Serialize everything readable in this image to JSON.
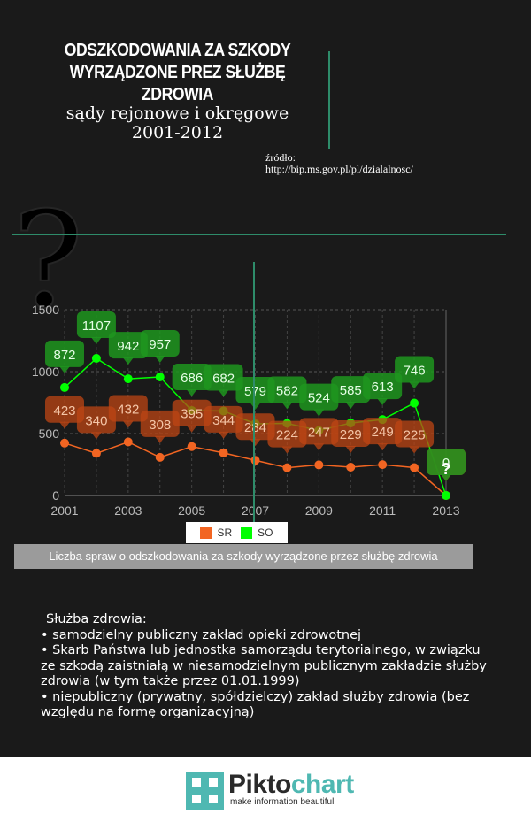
{
  "header": {
    "title_line1": "ODSZKODOWANIA ZA SZKODY",
    "title_line2": "WYRZĄDZONE PREZ SŁUŻBĘ ZDROWIA",
    "subtitle_line1": "sądy rejonowe i okręgowe",
    "subtitle_line2": "2001-2012",
    "source_label": "źródło:",
    "source_url": "http://bip.ms.gov.pl/pl/dzialalnosc/"
  },
  "decor": {
    "question_mark": "?"
  },
  "chart_data": {
    "type": "line",
    "x": [
      2001,
      2002,
      2003,
      2004,
      2005,
      2006,
      2007,
      2008,
      2009,
      2010,
      2011,
      2012,
      2013
    ],
    "x_ticks": [
      "2001",
      "2003",
      "2005",
      "2007",
      "2009",
      "2011",
      "2013"
    ],
    "y_ticks": [
      "0",
      "500",
      "1000",
      "1500"
    ],
    "ylim": [
      0,
      1500
    ],
    "grid": true,
    "series": [
      {
        "name": "SR",
        "color": "#f26522",
        "values": [
          423,
          340,
          432,
          308,
          395,
          344,
          284,
          224,
          247,
          229,
          249,
          225,
          0
        ]
      },
      {
        "name": "SO",
        "color": "#00ff00",
        "values": [
          872,
          1107,
          942,
          957,
          686,
          682,
          579,
          582,
          524,
          585,
          613,
          746,
          0
        ]
      }
    ],
    "annotation_2013": "?",
    "legend_position": "bottom",
    "caption": "Liczba spraw o odszkodowania za szkody wyrządzone przez służbę zdrowia"
  },
  "notes": {
    "heading": "Służba zdrowia:",
    "items": [
      "• samodzielny publiczny zakład opieki zdrowotnej",
      "• Skarb Państwa lub jednostka samorządu terytorialnego, w związku ze szkodą zaistniałą w niesamodzielnym publicznym zakładzie służby zdrowia (w tym także przez 01.01.1999)",
      "• niepubliczny (prywatny, spółdzielczy) zakład służby zdrowia (bez względu na  formę organizacyjną)"
    ]
  },
  "footer": {
    "brand_part1": "Pikto",
    "brand_part2": "chart",
    "tagline": "make information beautiful"
  }
}
